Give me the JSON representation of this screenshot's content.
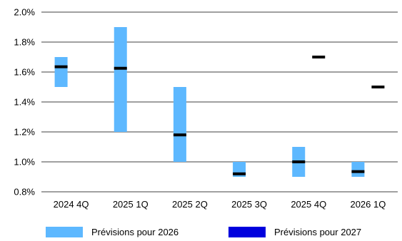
{
  "chart_data": {
    "type": "bar",
    "subtype": "floating-range-with-median",
    "categories": [
      "2024 4Q",
      "2025 1Q",
      "2025 2Q",
      "2025 3Q",
      "2025 4Q",
      "2026 1Q"
    ],
    "y_tick_labels": [
      "0.8%",
      "1.0%",
      "1.2%",
      "1.4%",
      "1.6%",
      "1.8%",
      "2.0%"
    ],
    "ylim": [
      0.8,
      2.0
    ],
    "y_ticks": [
      0.8,
      1.0,
      1.2,
      1.4,
      1.6,
      1.8,
      2.0
    ],
    "grid": true,
    "legend_position": "bottom",
    "series": [
      {
        "name": "Prévisions pour 2026",
        "color": "#5db8ff",
        "ranges": [
          [
            1.5,
            1.7
          ],
          [
            1.2,
            1.9
          ],
          [
            1.0,
            1.5
          ],
          [
            0.9,
            1.0
          ],
          [
            0.9,
            1.1
          ],
          [
            0.9,
            1.0
          ]
        ],
        "medians": [
          1.635,
          1.625,
          1.18,
          0.92,
          1.0,
          0.935
        ]
      },
      {
        "name": "Prévisions pour 2027",
        "color": "#0000dd",
        "ranges": [
          null,
          null,
          null,
          null,
          [
            1.7,
            1.7
          ],
          [
            1.5,
            1.5
          ]
        ],
        "medians": [
          null,
          null,
          null,
          null,
          1.7,
          1.5
        ]
      }
    ],
    "median_color": "#000000"
  }
}
